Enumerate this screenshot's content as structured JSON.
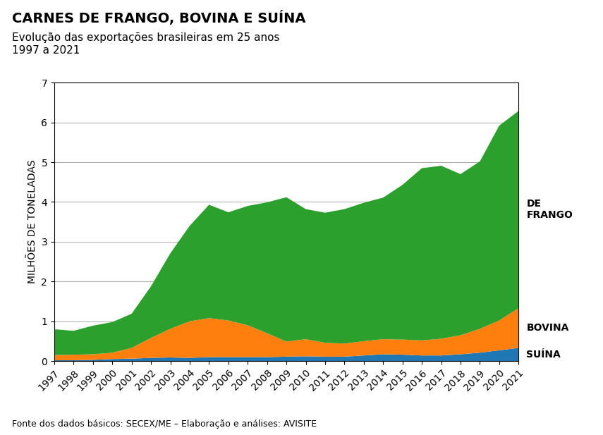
{
  "chart_data": {
    "type": "area",
    "stacked": true,
    "title": "CARNES DE FRANGO, BOVINA E SUÍNA",
    "subtitle": "Evolução das exportações brasileiras em 25 anos\n1997 a 2021",
    "y_label": "MILHÕES DE TONELADAS",
    "annotations": [
      "Fonte dos dados básicos: SECEX/ME – Elaboração e análises: AVISITE"
    ],
    "x": [
      1997,
      1998,
      1999,
      2000,
      2001,
      2002,
      2003,
      2004,
      2005,
      2006,
      2007,
      2008,
      2009,
      2010,
      2011,
      2012,
      2013,
      2014,
      2015,
      2016,
      2017,
      2018,
      2019,
      2020,
      2021
    ],
    "series": [
      {
        "name": "SUÍNA",
        "values": [
          0.02,
          0.02,
          0.03,
          0.05,
          0.06,
          0.08,
          0.09,
          0.08,
          0.1,
          0.1,
          0.1,
          0.1,
          0.11,
          0.12,
          0.11,
          0.11,
          0.14,
          0.17,
          0.16,
          0.14,
          0.14,
          0.17,
          0.21,
          0.27,
          0.33
        ]
      },
      {
        "name": "BOVINA",
        "values": [
          0.13,
          0.14,
          0.14,
          0.16,
          0.27,
          0.5,
          0.72,
          0.92,
          0.98,
          0.92,
          0.8,
          0.6,
          0.38,
          0.43,
          0.35,
          0.33,
          0.36,
          0.38,
          0.38,
          0.38,
          0.42,
          0.48,
          0.6,
          0.75,
          1.0
        ]
      },
      {
        "name": "DE\nFRANGO",
        "values": [
          0.65,
          0.6,
          0.72,
          0.77,
          0.86,
          1.3,
          1.9,
          2.4,
          2.85,
          2.72,
          3.0,
          3.29,
          3.63,
          3.27,
          3.27,
          3.38,
          3.48,
          3.56,
          3.89,
          4.33,
          4.35,
          4.05,
          4.21,
          4.9,
          4.96
        ]
      }
    ],
    "xlim": [
      1997,
      2021
    ],
    "xticks": [
      1997,
      1998,
      1999,
      2000,
      2001,
      2002,
      2003,
      2004,
      2005,
      2006,
      2007,
      2008,
      2009,
      2010,
      2011,
      2012,
      2013,
      2014,
      2015,
      2016,
      2017,
      2018,
      2019,
      2020,
      2021
    ],
    "ylim": [
      0,
      7
    ],
    "yticks": [
      0,
      1,
      2,
      3,
      4,
      5,
      6,
      7
    ],
    "grid": true
  }
}
